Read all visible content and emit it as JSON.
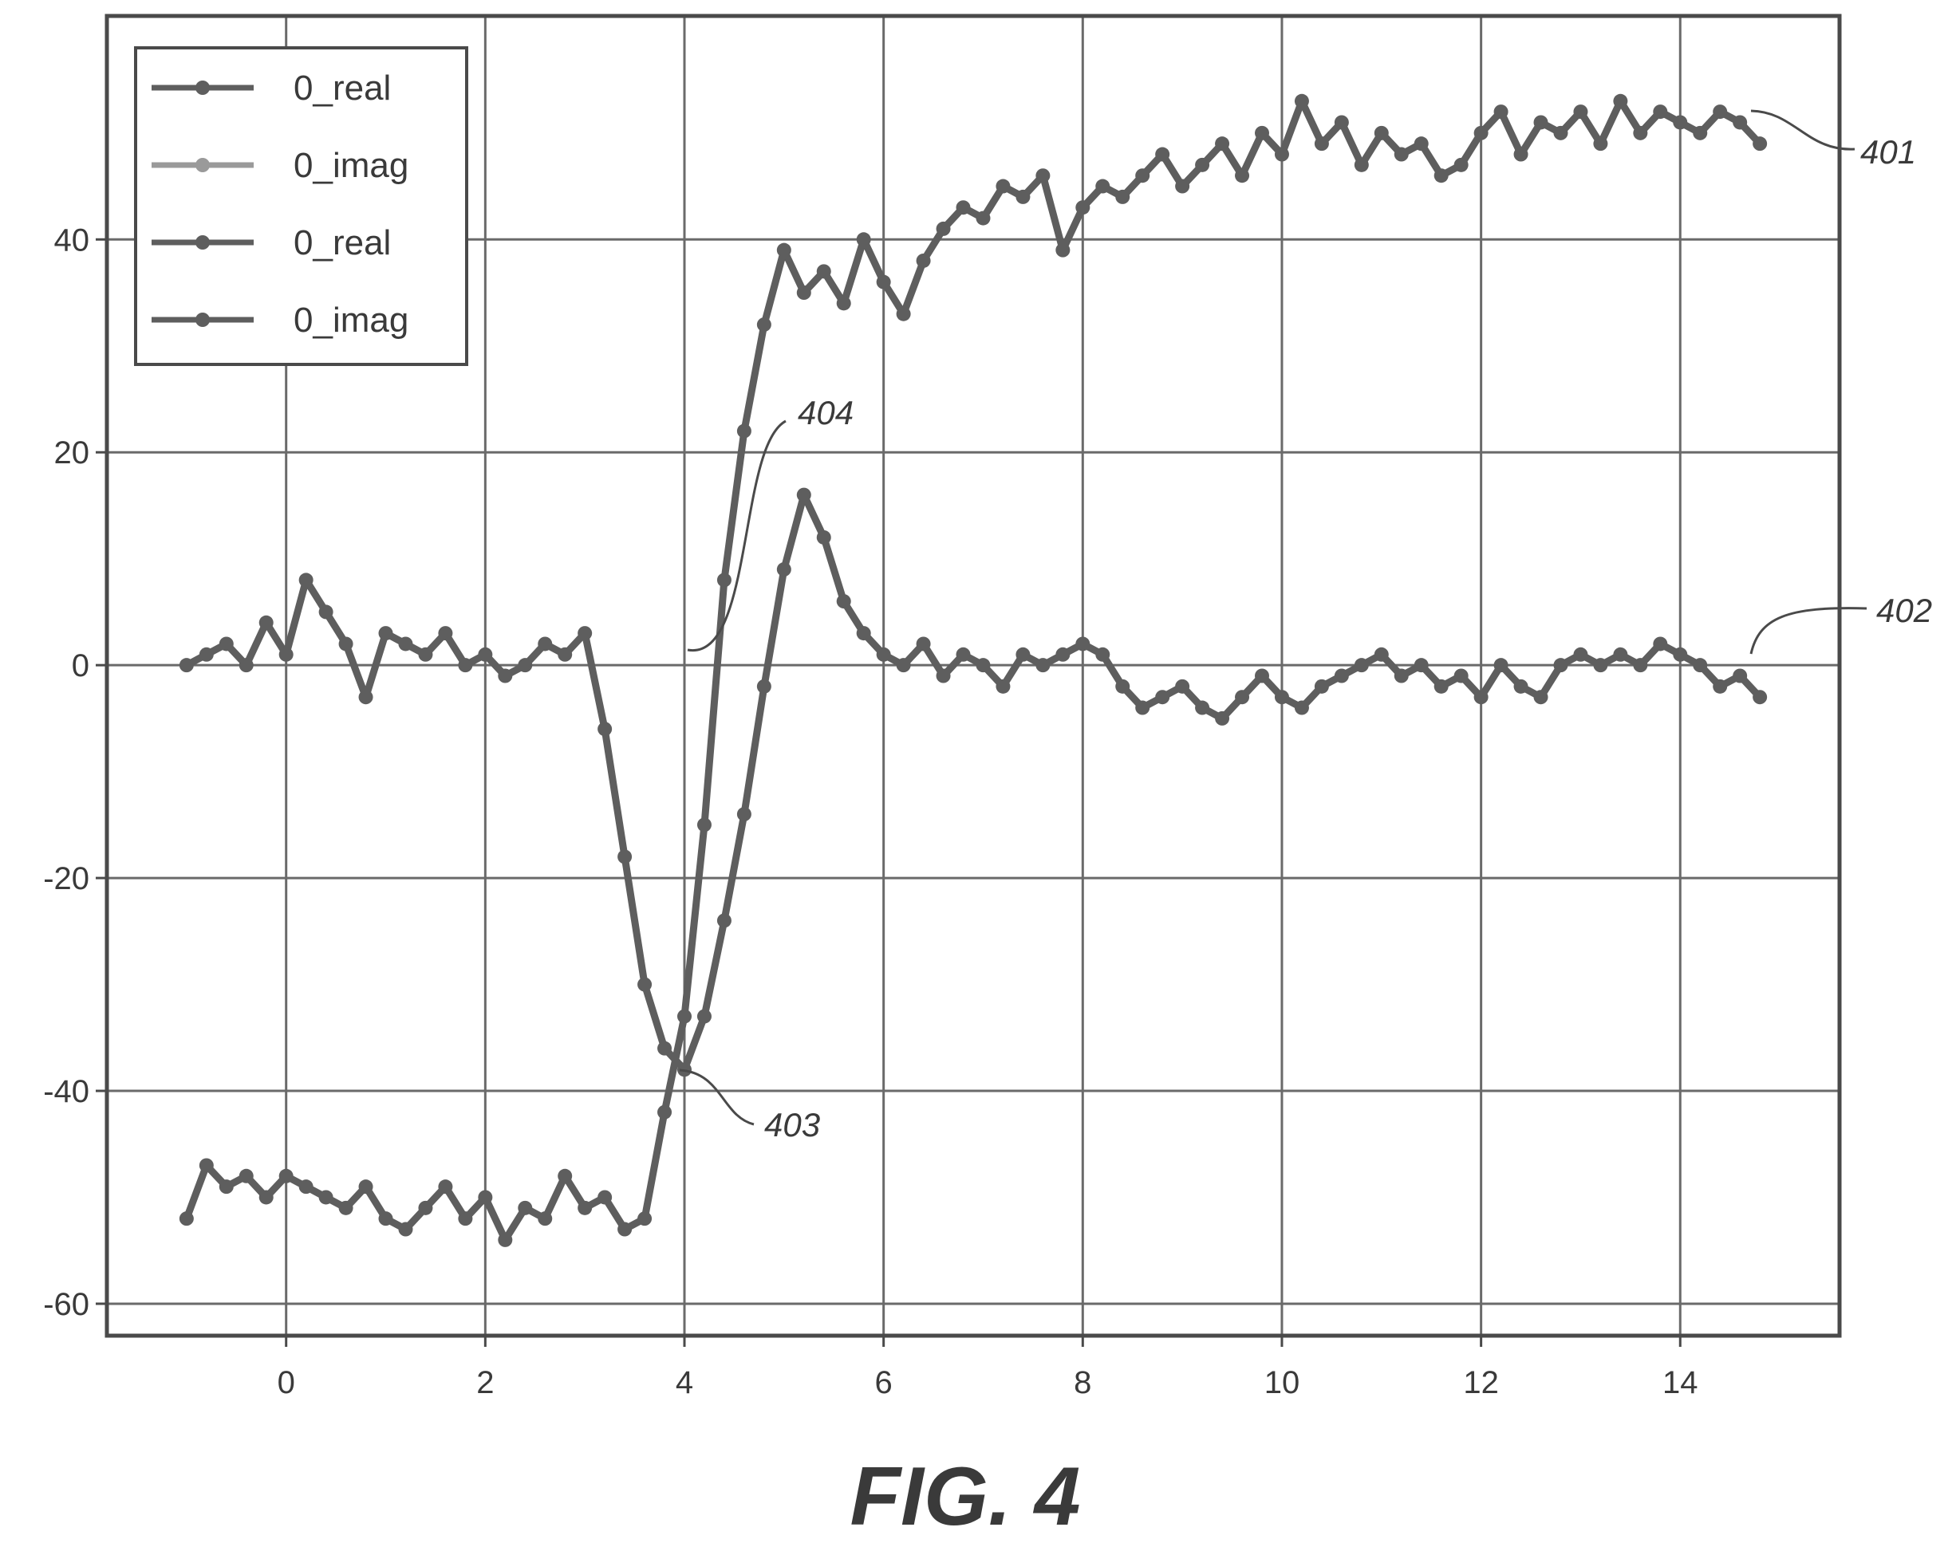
{
  "figure_label": "FIG. 4",
  "chart_data": {
    "type": "line",
    "title": "",
    "xlabel": "",
    "ylabel": "",
    "xlim": [
      -1.8,
      15.6
    ],
    "ylim": [
      -63,
      61
    ],
    "xticks": [
      0,
      2,
      4,
      6,
      8,
      10,
      12,
      14
    ],
    "yticks": [
      -60,
      -40,
      -20,
      0,
      20,
      40
    ],
    "grid": true,
    "legend_position": "top-left",
    "line_color": "#5e5e5e",
    "legend": [
      "0_real",
      "0_imag",
      "0_real",
      "0_imag"
    ],
    "series": [
      {
        "name": "0_real",
        "reference": "401",
        "x": [
          -1.0,
          -0.8,
          -0.6,
          -0.4,
          -0.2,
          0.0,
          0.2,
          0.4,
          0.6,
          0.8,
          1.0,
          1.2,
          1.4,
          1.6,
          1.8,
          2.0,
          2.2,
          2.4,
          2.6,
          2.8,
          3.0,
          3.2,
          3.4,
          3.6,
          3.8,
          4.0,
          4.2,
          4.4,
          4.6,
          4.8,
          5.0,
          5.2,
          5.4,
          5.6,
          5.8,
          6.0,
          6.2,
          6.4,
          6.6,
          6.8,
          7.0,
          7.2,
          7.4,
          7.6,
          7.8,
          8.0,
          8.2,
          8.4,
          8.6,
          8.8,
          9.0,
          9.2,
          9.4,
          9.6,
          9.8,
          10.0,
          10.2,
          10.4,
          10.6,
          10.8,
          11.0,
          11.2,
          11.4,
          11.6,
          11.8,
          12.0,
          12.2,
          12.4,
          12.6,
          12.8,
          13.0,
          13.2,
          13.4,
          13.6,
          13.8,
          14.0,
          14.2,
          14.4,
          14.6,
          14.8
        ],
        "y": [
          -52,
          -47,
          -49,
          -48,
          -50,
          -48,
          -49,
          -50,
          -51,
          -49,
          -52,
          -53,
          -51,
          -49,
          -52,
          -50,
          -54,
          -51,
          -52,
          -48,
          -51,
          -50,
          -53,
          -52,
          -42,
          -33,
          -15,
          8,
          22,
          32,
          39,
          35,
          37,
          34,
          40,
          36,
          33,
          38,
          41,
          43,
          42,
          45,
          44,
          46,
          39,
          43,
          45,
          44,
          46,
          48,
          45,
          47,
          49,
          46,
          50,
          48,
          53,
          49,
          51,
          47,
          50,
          48,
          49,
          46,
          47,
          50,
          52,
          48,
          51,
          50,
          52,
          49,
          53,
          50,
          52,
          51,
          50,
          52,
          51,
          49
        ]
      },
      {
        "name": "0_imag",
        "reference": "402",
        "x": [
          -1.0,
          -0.8,
          -0.6,
          -0.4,
          -0.2,
          0.0,
          0.2,
          0.4,
          0.6,
          0.8,
          1.0,
          1.2,
          1.4,
          1.6,
          1.8,
          2.0,
          2.2,
          2.4,
          2.6,
          2.8,
          3.0,
          3.2,
          3.4,
          3.6,
          3.8,
          4.0,
          4.2,
          4.4,
          4.6,
          4.8,
          5.0,
          5.2,
          5.4,
          5.6,
          5.8,
          6.0,
          6.2,
          6.4,
          6.6,
          6.8,
          7.0,
          7.2,
          7.4,
          7.6,
          7.8,
          8.0,
          8.2,
          8.4,
          8.6,
          8.8,
          9.0,
          9.2,
          9.4,
          9.6,
          9.8,
          10.0,
          10.2,
          10.4,
          10.6,
          10.8,
          11.0,
          11.2,
          11.4,
          11.6,
          11.8,
          12.0,
          12.2,
          12.4,
          12.6,
          12.8,
          13.0,
          13.2,
          13.4,
          13.6,
          13.8,
          14.0,
          14.2,
          14.4,
          14.6,
          14.8
        ],
        "y": [
          0,
          1,
          2,
          0,
          4,
          1,
          8,
          5,
          2,
          -3,
          3,
          2,
          1,
          3,
          0,
          1,
          -1,
          0,
          2,
          1,
          3,
          -6,
          -18,
          -30,
          -36,
          -38,
          -33,
          -24,
          -14,
          -2,
          9,
          16,
          12,
          6,
          3,
          1,
          0,
          2,
          -1,
          1,
          0,
          -2,
          1,
          0,
          1,
          2,
          1,
          -2,
          -4,
          -3,
          -2,
          -4,
          -5,
          -3,
          -1,
          -3,
          -4,
          -2,
          -1,
          0,
          1,
          -1,
          0,
          -2,
          -1,
          -3,
          0,
          -2,
          -3,
          0,
          1,
          0,
          1,
          0,
          2,
          1,
          0,
          -2,
          -1,
          -3
        ]
      }
    ],
    "annotations": [
      "401",
      "402",
      "403",
      "404"
    ]
  }
}
